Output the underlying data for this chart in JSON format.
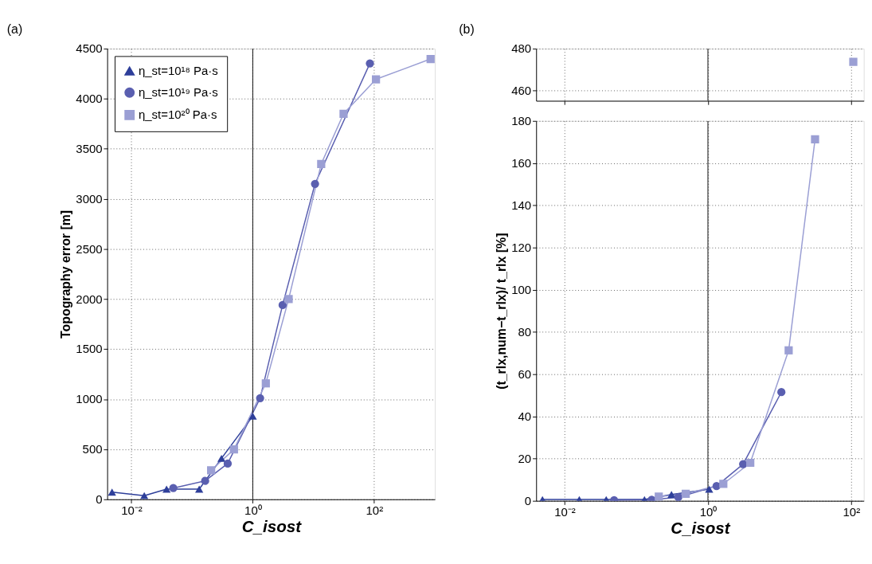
{
  "chart_data": [
    {
      "type": "line",
      "title": "(a)",
      "xlabel": "C_isost",
      "ylabel": "Topography error [m]",
      "log": "x",
      "grid": true,
      "legend": "top left",
      "xlim": [
        0.004,
        1000
      ],
      "xticks": [
        {
          "value": 0.01,
          "label": "10⁻²"
        },
        {
          "value": 1,
          "label": "10⁰"
        },
        {
          "value": 100,
          "label": "10²"
        }
      ],
      "ylim": [
        0,
        4500
      ],
      "yticks": [
        0,
        500,
        1000,
        1500,
        2000,
        2500,
        3000,
        3500,
        4000,
        4500
      ],
      "ref_lines": [
        {
          "axis": "x",
          "value": 1,
          "color": "#000000",
          "line_style": "solid"
        }
      ],
      "series": [
        {
          "name": "η_st=10¹⁸ Pa·s",
          "color": "#2e3f9a",
          "marker": "triangle",
          "x": [
            0.0048,
            0.0163,
            0.038,
            0.131,
            0.305,
            1.0
          ],
          "values": [
            72,
            37,
            102,
            102,
            409,
            831
          ]
        },
        {
          "name": "η_st=10¹⁹ Pa·s",
          "color": "#5a5fb0",
          "marker": "circle",
          "x": [
            0.049,
            0.164,
            0.386,
            1.32,
            3.1,
            10.6,
            85
          ],
          "values": [
            112,
            184,
            357,
            1010,
            1940,
            3150,
            4353
          ]
        },
        {
          "name": "η_st=10²⁰ Pa·s",
          "color": "#9b9fd4",
          "marker": "square",
          "x": [
            0.206,
            0.49,
            1.64,
            3.9,
            13.4,
            31.3,
            107,
            850
          ],
          "values": [
            290,
            499,
            1158,
            2000,
            3348,
            3850,
            4194,
            4397
          ]
        }
      ]
    },
    {
      "type": "line",
      "title": "(b)",
      "log": "x",
      "grid": true,
      "tick_labels": "y",
      "xlim": [
        0.004,
        150
      ],
      "xticks": [
        {
          "value": 0.01,
          "label": null
        },
        {
          "value": 1,
          "label": null
        },
        {
          "value": 100,
          "label": null
        }
      ],
      "ylim": [
        455,
        480
      ],
      "yticks": [
        460,
        480
      ],
      "ref_lines": [
        {
          "axis": "x",
          "value": 1,
          "color": "#000000",
          "line_style": "solid"
        }
      ],
      "series": [
        {
          "color": "#9b9fd4",
          "marker": "square",
          "x": [
            107
          ],
          "values": [
            473.7
          ]
        }
      ]
    },
    {
      "type": "line",
      "xlabel": "C_isost",
      "ylabel": "(t_rlx,num−t_rlx)/ t_rlx [%]",
      "log": "x",
      "grid": true,
      "xlim": [
        0.004,
        150
      ],
      "xticks": [
        {
          "value": 0.01,
          "label": "10⁻²"
        },
        {
          "value": 1,
          "label": "10⁰"
        },
        {
          "value": 100,
          "label": "10²"
        }
      ],
      "ylim": [
        0,
        180
      ],
      "yticks": [
        0,
        20,
        40,
        60,
        80,
        100,
        120,
        140,
        160,
        180
      ],
      "ref_lines": [
        {
          "axis": "x",
          "value": 1,
          "color": "#000000",
          "line_style": "solid"
        }
      ],
      "series": [
        {
          "color": "#2e3f9a",
          "marker": "triangle",
          "x": [
            0.0049,
            0.016,
            0.038,
            0.13,
            0.31,
            1.04
          ],
          "values": [
            0.6,
            0.6,
            0.6,
            0.6,
            3.0,
            5.5
          ]
        },
        {
          "color": "#5a5fb0",
          "marker": "circle",
          "x": [
            0.049,
            0.164,
            0.386,
            1.32,
            3.1,
            10.6
          ],
          "values": [
            0.3,
            0.5,
            1.7,
            7.0,
            17.4,
            51.5
          ]
        },
        {
          "color": "#9b9fd4",
          "marker": "square",
          "x": [
            0.206,
            0.49,
            1.64,
            3.9,
            13.4,
            31.3
          ],
          "values": [
            2.0,
            3.3,
            8.0,
            18.0,
            71.3,
            171.3
          ]
        }
      ]
    }
  ]
}
